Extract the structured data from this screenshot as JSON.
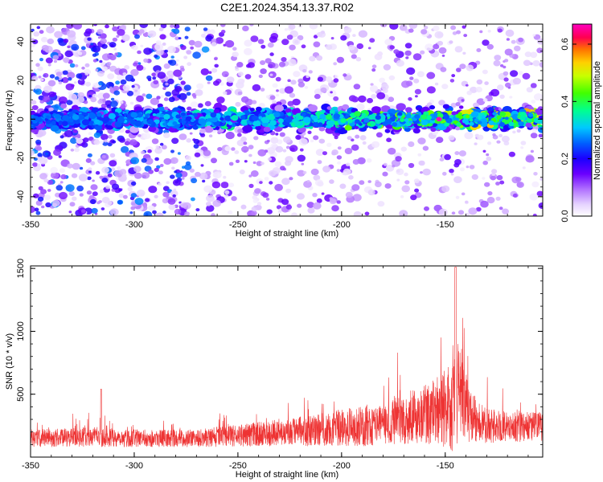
{
  "figure": {
    "title": "C2E1.2024.354.13.37.R02"
  },
  "chart_data": [
    {
      "type": "heatmap",
      "xlabel": "Height of straight line (km)",
      "ylabel": "Frequency (Hz)",
      "xlim": [
        -350,
        -103
      ],
      "ylim": [
        -50,
        49
      ],
      "xticks": [
        -350,
        -300,
        -250,
        -200,
        -150
      ],
      "yticks": [
        -40,
        -20,
        0,
        20,
        40
      ],
      "colorbar": {
        "label": "Normalized spectral amplitude",
        "range": [
          0.0,
          0.67
        ],
        "ticks": [
          0.0,
          0.2,
          0.4,
          0.6
        ],
        "colormap": [
          "#ffffff",
          "#d8b8ff",
          "#8a2be2",
          "#3a00ff",
          "#0000ff",
          "#00c8ff",
          "#00ff88",
          "#7cff00",
          "#ffff00",
          "#ff8c00",
          "#ff0060",
          "#ff00ff"
        ]
      },
      "band": {
        "center_hz": 0,
        "half_width_hz": 4,
        "peak_x_km": -153,
        "peak_value": 0.67
      },
      "grid": false
    },
    {
      "type": "line",
      "xlabel": "Height of straight line (km)",
      "ylabel": "SNR (10 * v/v)",
      "xlim": [
        -350,
        -103
      ],
      "ylim": [
        0,
        1520
      ],
      "xticks": [
        -350,
        -300,
        -250,
        -200,
        -150
      ],
      "yticks": [
        500,
        1000,
        1500
      ],
      "series": [
        {
          "color": "#ee3333",
          "envelope": {
            "x": [
              -350,
              -320,
              -300,
              -270,
              -250,
              -225,
              -200,
              -180,
              -170,
              -160,
              -152,
              -148,
              -145,
              -142,
              -138,
              -130,
              -120,
              -103
            ],
            "base": [
              150,
              160,
              150,
              150,
              170,
              200,
              230,
              260,
              300,
              340,
              380,
              420,
              480,
              420,
              330,
              250,
              240,
              240
            ],
            "spread": [
              70,
              80,
              70,
              70,
              90,
              110,
              150,
              170,
              200,
              230,
              300,
              380,
              480,
              380,
              200,
              140,
              120,
              120
            ],
            "max_peak": 1510
          }
        }
      ],
      "grid": false
    }
  ]
}
